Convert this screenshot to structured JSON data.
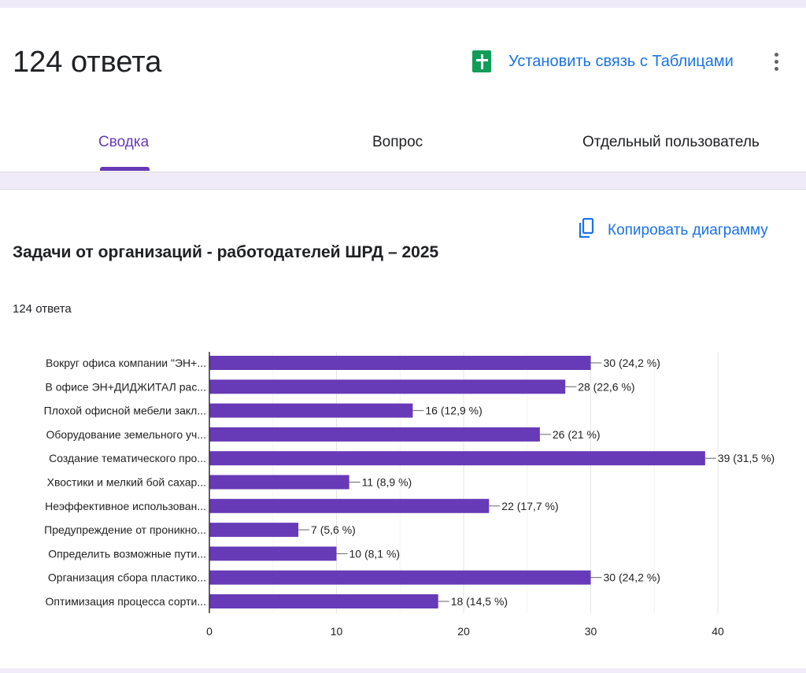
{
  "header": {
    "title": "124 ответа",
    "sheets_link": "Установить связь с Таблицами"
  },
  "tabs": [
    {
      "label": "Сводка",
      "active": true
    },
    {
      "label": "Вопрос"
    },
    {
      "label": "Отдельный пользователь"
    }
  ],
  "question": {
    "title": "Задачи от организаций - работодателей ШРД – 2025",
    "responses": "124 ответа",
    "copy_label": "Копировать диаграмму"
  },
  "colors": {
    "accent": "#673ab7",
    "bar": "#673ab7",
    "link": "#1a73e8"
  },
  "chart_data": {
    "type": "bar",
    "orientation": "horizontal",
    "categories": [
      "Вокруг офиса компании \"ЭН+...",
      "В офисе ЭН+ДИДЖИТАЛ рас...",
      "Плохой офисной мебели закл...",
      "Оборудование земельного уч...",
      "Создание тематического про...",
      "Хвостики и мелкий бой сахар...",
      "Неэффективное использован...",
      "Предупреждение от проникно...",
      "Определить возможные пути...",
      "Организация сбора пластико...",
      "Оптимизация процесса сорти..."
    ],
    "values": [
      30,
      28,
      16,
      26,
      39,
      11,
      22,
      7,
      10,
      30,
      18
    ],
    "labels": [
      "30 (24,2 %)",
      "28 (22,6 %)",
      "16 (12,9 %)",
      "26 (21 %)",
      "39 (31,5 %)",
      "11 (8,9 %)",
      "22 (17,7 %)",
      "7 (5,6 %)",
      "10 (8,1 %)",
      "30 (24,2 %)",
      "18 (14,5 %)"
    ],
    "xlim": [
      0,
      40
    ],
    "xticks": [
      "0",
      "10",
      "20",
      "30",
      "40"
    ],
    "grid": true
  }
}
